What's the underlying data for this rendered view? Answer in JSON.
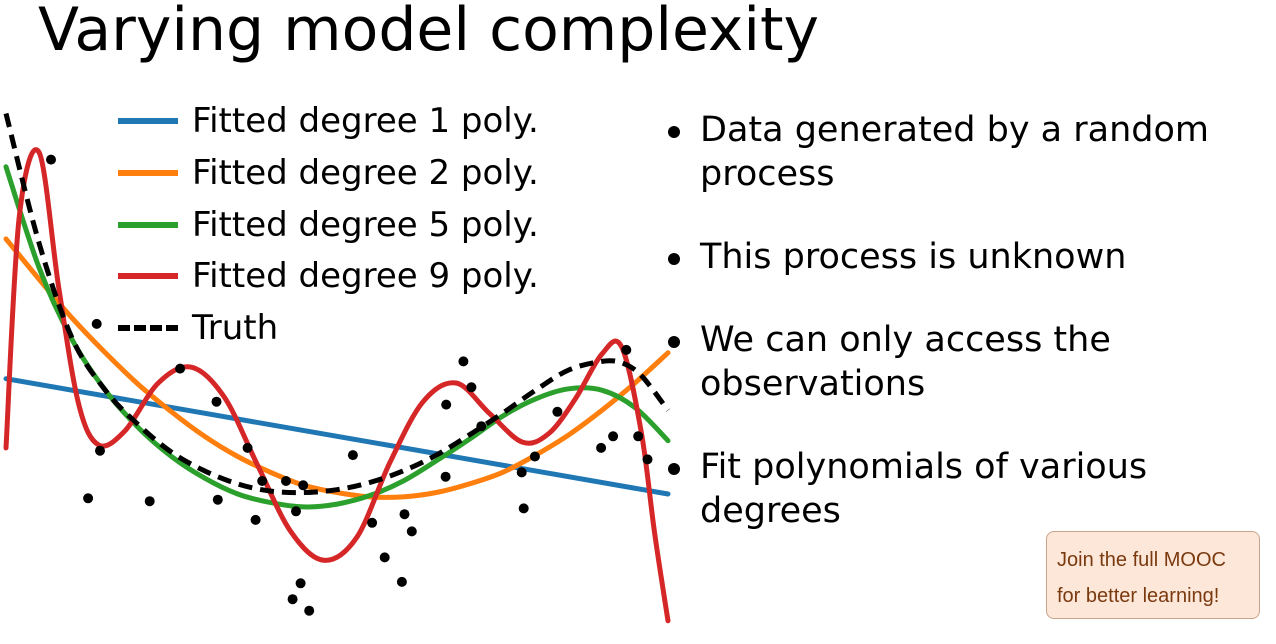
{
  "slide": {
    "title": "Varying model complexity",
    "bullets": [
      "Data generated by a random process",
      "This process is unknown",
      "We can only access the observations",
      "Fit polynomials of various degrees"
    ]
  },
  "badge": {
    "text": "Join the full MOOC for better learning!"
  },
  "chart_data": {
    "type": "scatter",
    "title": "",
    "xlabel": "",
    "ylabel": "",
    "grid": false,
    "axes_visible": false,
    "legend_position": "top-left",
    "xlim": [
      0,
      1
    ],
    "ylim": [
      -1.75,
      1.9
    ],
    "points": {
      "color": "#000000",
      "x": [
        0.068,
        0.137,
        0.142,
        0.124,
        0.263,
        0.217,
        0.318,
        0.365,
        0.32,
        0.377,
        0.387,
        0.423,
        0.438,
        0.445,
        0.433,
        0.458,
        0.524,
        0.449,
        0.553,
        0.572,
        0.598,
        0.602,
        0.613,
        0.664,
        0.691,
        0.703,
        0.665,
        0.718,
        0.779,
        0.799,
        0.782,
        0.833,
        0.917,
        0.937,
        0.899,
        0.955,
        0.969
      ],
      "y": [
        1.5,
        0.36,
        -0.52,
        -0.85,
        0.05,
        -0.87,
        -0.18,
        -0.5,
        -0.86,
        -1.0,
        -0.73,
        -0.73,
        -0.94,
        -1.44,
        -1.55,
        -1.63,
        -0.55,
        -0.76,
        -1.02,
        -1.26,
        -1.43,
        -0.96,
        -1.08,
        -0.7,
        0.1,
        -0.08,
        -0.2,
        -0.35,
        -0.67,
        -0.56,
        -0.92,
        -0.25,
        -0.42,
        0.18,
        -0.5,
        -0.42,
        -0.58
      ]
    },
    "series": [
      {
        "name": "Fitted degree 1 poly.",
        "color": "#1f77b4",
        "x": [
          0,
          0.5,
          1
        ],
        "y": [
          -0.02,
          -0.42,
          -0.82
        ]
      },
      {
        "name": "Fitted degree 2 poly.",
        "color": "#ff7f0e",
        "x": [
          0,
          0.05,
          0.1,
          0.15,
          0.2,
          0.25,
          0.3,
          0.35,
          0.4,
          0.45,
          0.5,
          0.55,
          0.6,
          0.65,
          0.7,
          0.75,
          0.8,
          0.85,
          0.9,
          0.95,
          1
        ],
        "y": [
          0.95,
          0.67,
          0.4,
          0.16,
          -0.06,
          -0.25,
          -0.42,
          -0.56,
          -0.67,
          -0.76,
          -0.81,
          -0.84,
          -0.84,
          -0.81,
          -0.75,
          -0.67,
          -0.55,
          -0.41,
          -0.24,
          -0.05,
          0.16
        ]
      },
      {
        "name": "Fitted degree 5 poly.",
        "color": "#2ca02c",
        "x": [
          0,
          0.05,
          0.1,
          0.15,
          0.2,
          0.25,
          0.3,
          0.35,
          0.4,
          0.45,
          0.5,
          0.55,
          0.6,
          0.65,
          0.7,
          0.75,
          0.8,
          0.85,
          0.9,
          0.95,
          1
        ],
        "y": [
          1.45,
          0.75,
          0.25,
          -0.1,
          -0.36,
          -0.56,
          -0.71,
          -0.82,
          -0.88,
          -0.91,
          -0.89,
          -0.83,
          -0.73,
          -0.59,
          -0.44,
          -0.28,
          -0.16,
          -0.09,
          -0.1,
          -0.22,
          -0.45
        ]
      },
      {
        "name": "Fitted degree 9 poly.",
        "color": "#d62728",
        "x": [
          0,
          0.02,
          0.05,
          0.08,
          0.11,
          0.14,
          0.18,
          0.23,
          0.28,
          0.33,
          0.38,
          0.43,
          0.48,
          0.53,
          0.58,
          0.63,
          0.68,
          0.73,
          0.78,
          0.82,
          0.86,
          0.9,
          0.93,
          0.96,
          0.98,
          1
        ],
        "y": [
          -0.5,
          1.1,
          1.55,
          0.6,
          -0.2,
          -0.48,
          -0.38,
          -0.05,
          0.06,
          -0.15,
          -0.62,
          -1.08,
          -1.28,
          -1.12,
          -0.6,
          -0.18,
          -0.05,
          -0.26,
          -0.46,
          -0.4,
          -0.16,
          0.15,
          0.2,
          -0.4,
          -1.1,
          -1.7
        ]
      },
      {
        "name": "Truth",
        "color": "#000000",
        "dashed": true,
        "x": [
          0,
          0.05,
          0.1,
          0.15,
          0.2,
          0.25,
          0.3,
          0.35,
          0.4,
          0.45,
          0.5,
          0.55,
          0.6,
          0.65,
          0.7,
          0.75,
          0.8,
          0.85,
          0.9,
          0.93,
          0.96,
          1
        ],
        "y": [
          1.82,
          0.92,
          0.26,
          -0.1,
          -0.34,
          -0.53,
          -0.66,
          -0.75,
          -0.8,
          -0.81,
          -0.79,
          -0.74,
          -0.66,
          -0.55,
          -0.41,
          -0.26,
          -0.1,
          0.04,
          0.1,
          0.09,
          0.0,
          -0.24
        ]
      }
    ]
  }
}
